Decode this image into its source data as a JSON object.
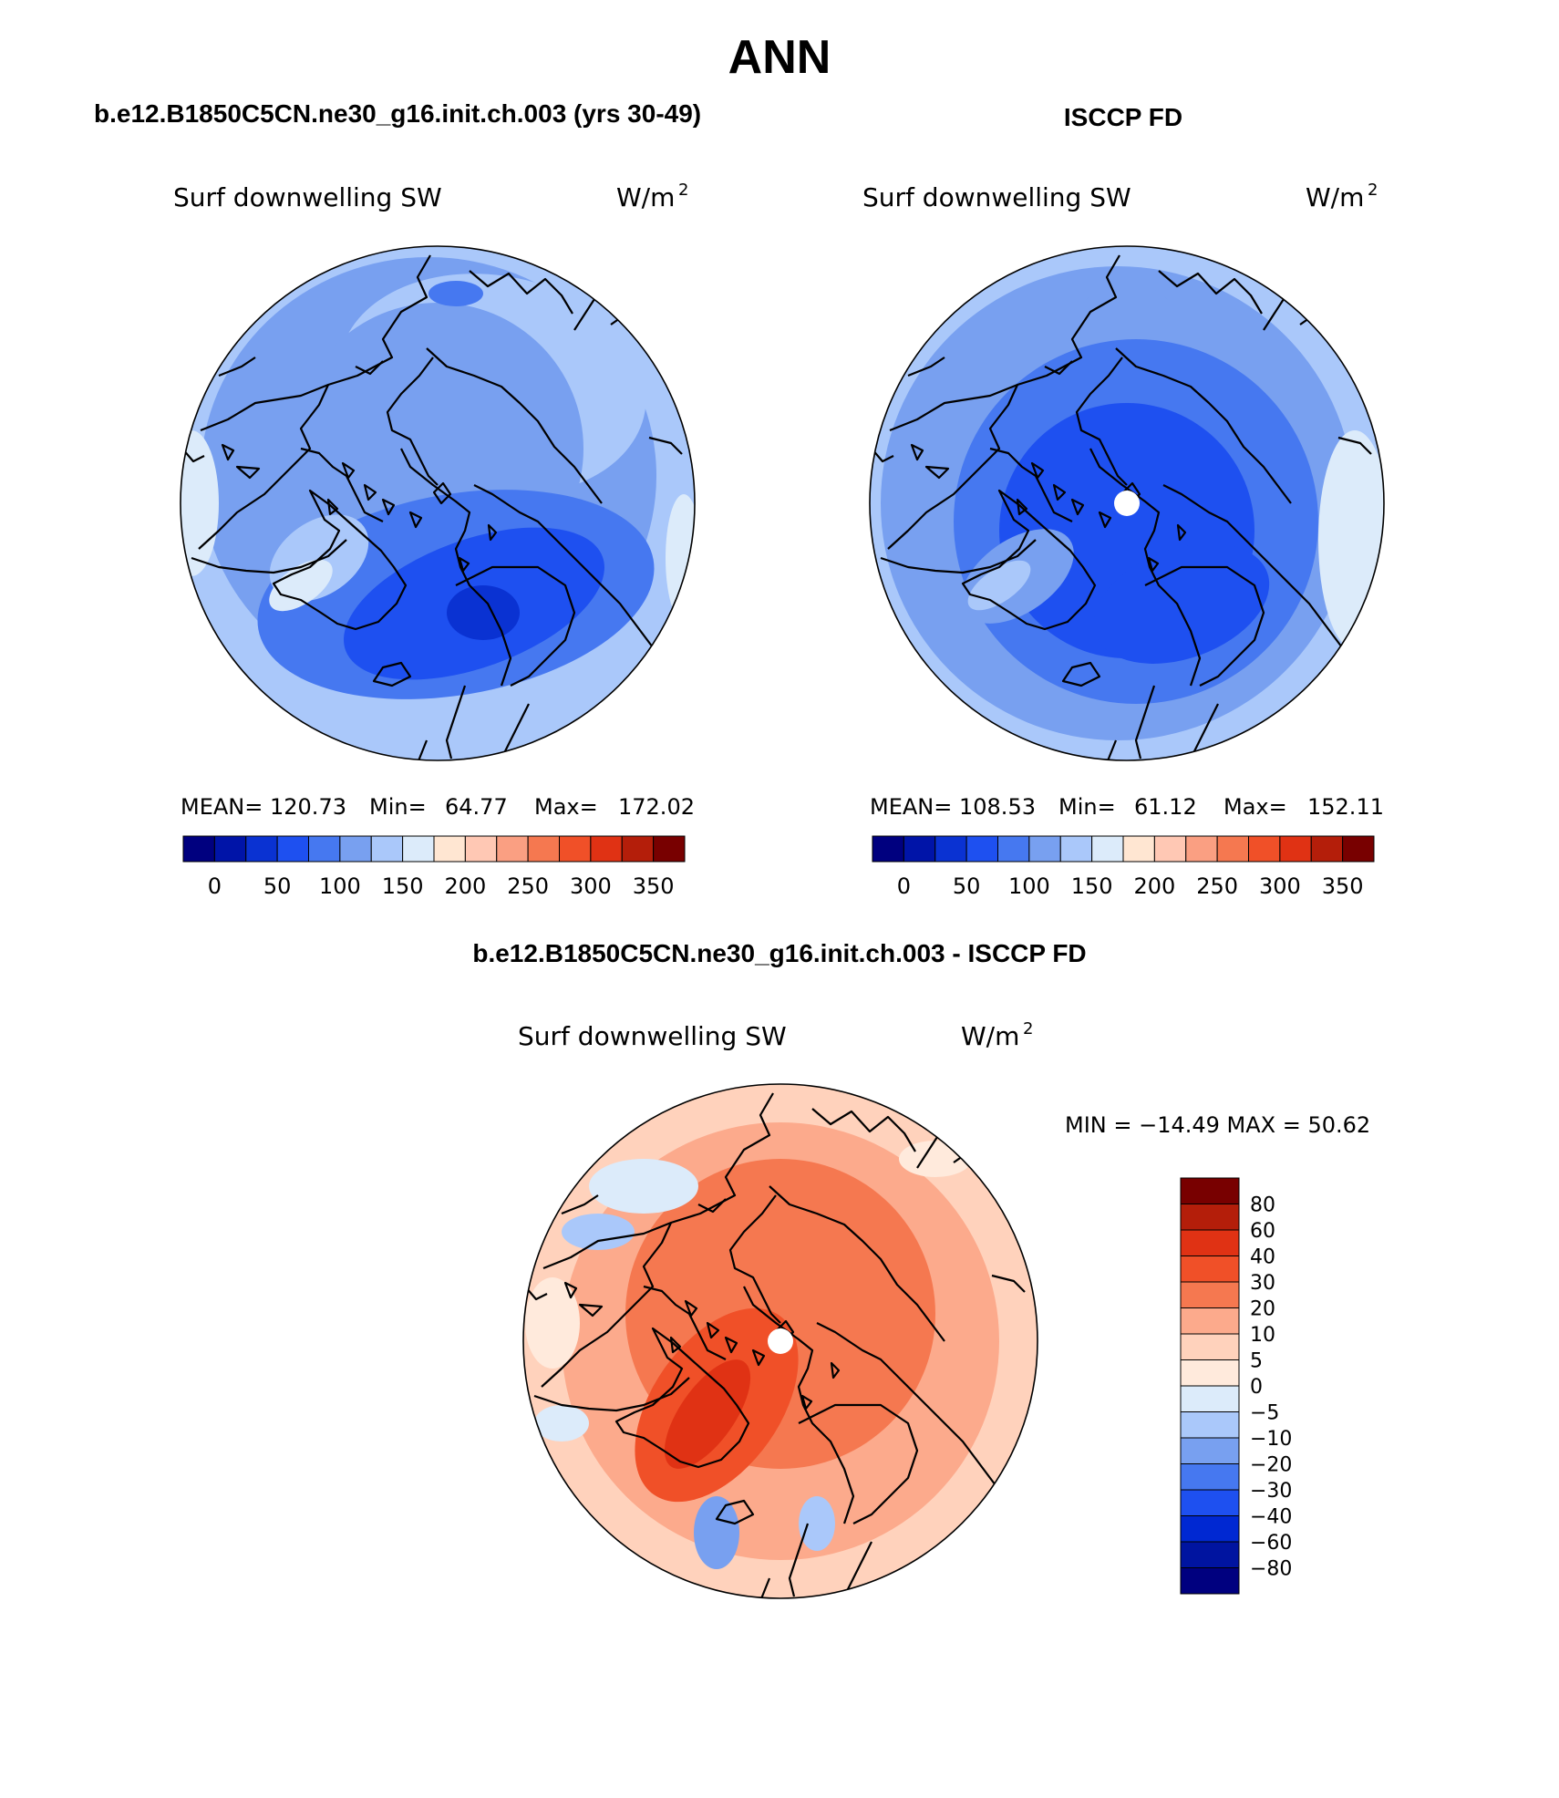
{
  "page": {
    "title": "ANN"
  },
  "panels": [
    {
      "id": "model",
      "case_title": "b.e12.B1850C5CN.ne30_g16.init.ch.003 (yrs 30-49)",
      "variable": "Surf downwelling SW",
      "units_base": "W/m",
      "units_exp": "2",
      "stats": {
        "mean_label": "MEAN=",
        "mean": "120.73",
        "min_label": "Min=",
        "min": "64.77",
        "max_label": "Max=",
        "max": "172.02"
      },
      "colorbar_ticks": [
        "0",
        "50",
        "100",
        "150",
        "200",
        "250",
        "300",
        "350"
      ]
    },
    {
      "id": "obs",
      "case_title": "ISCCP FD",
      "variable": "Surf downwelling SW",
      "units_base": "W/m",
      "units_exp": "2",
      "stats": {
        "mean_label": "MEAN=",
        "mean": "108.53",
        "min_label": "Min=",
        "min": "61.12",
        "max_label": "Max=",
        "max": "152.11"
      },
      "colorbar_ticks": [
        "0",
        "50",
        "100",
        "150",
        "200",
        "250",
        "300",
        "350"
      ]
    }
  ],
  "diff_panel": {
    "title": "b.e12.B1850C5CN.ne30_g16.init.ch.003 - ISCCP FD",
    "variable": "Surf downwelling SW",
    "units_base": "W/m",
    "units_exp": "2",
    "minmax_text": "MIN = −14.49 MAX =  50.62",
    "colorbar_ticks": [
      "80",
      "60",
      "40",
      "30",
      "20",
      "10",
      "5",
      "0",
      "−5",
      "−10",
      "−20",
      "−30",
      "−40",
      "−60",
      "−80"
    ]
  },
  "colors": {
    "abs_scale": [
      "#00007f",
      "#0014a8",
      "#0a32d2",
      "#1e50f0",
      "#4678f0",
      "#78a0f0",
      "#aac8fa",
      "#dcebfa",
      "#ffe6d2",
      "#ffc8b4",
      "#fa9f82",
      "#f57850",
      "#f05028",
      "#e03214",
      "#b41e0a",
      "#780000"
    ],
    "diff_scale": [
      "#00007f",
      "#0014a0",
      "#0028d2",
      "#1e50f0",
      "#4678f0",
      "#78a0f0",
      "#aac8fa",
      "#dcebfa",
      "#ffeadc",
      "#ffd2bc",
      "#fcaa8c",
      "#f57850",
      "#f05028",
      "#e03214",
      "#b41e0a",
      "#780000"
    ]
  }
}
